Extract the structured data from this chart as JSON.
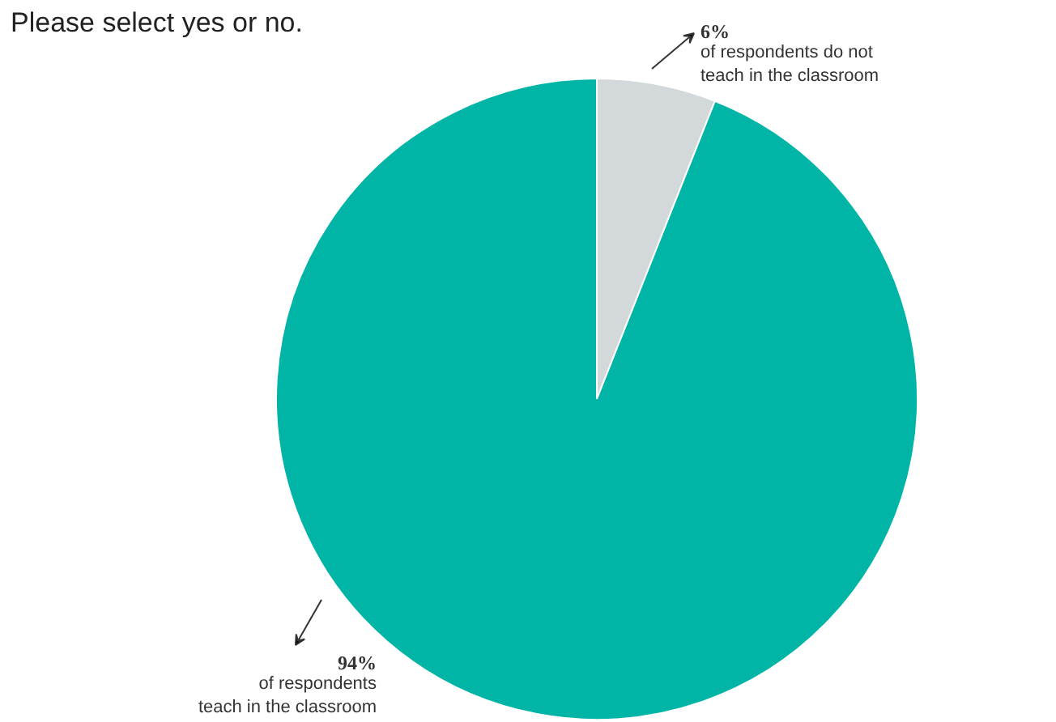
{
  "chart_data": {
    "type": "pie",
    "title": "Please select yes or no.",
    "categories": [
      null,
      null
    ],
    "values": [
      6,
      94
    ],
    "colors": [
      "#d3d8db",
      "#00b4a6"
    ],
    "value_labels": [
      "6%",
      "94%"
    ],
    "annotations": [
      "of respondents do not\nteach in the classroom",
      "of respondents\nteach in the classroom"
    ]
  }
}
